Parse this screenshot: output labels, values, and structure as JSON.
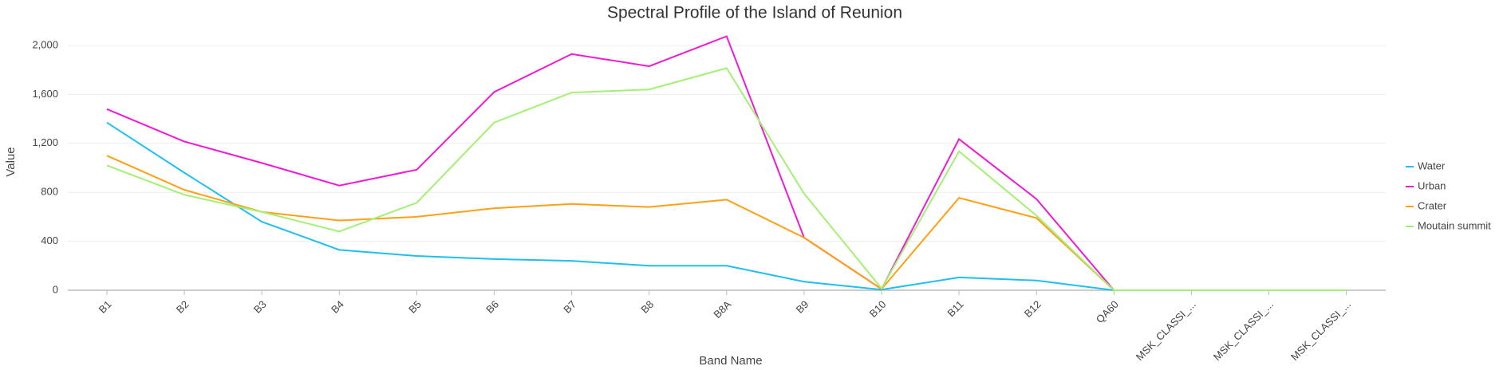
{
  "chart_data": {
    "type": "line",
    "title": "Spectral Profile of the Island of Reunion",
    "x_label": "Band Name",
    "y_label": "Value",
    "categories": [
      "B1",
      "B2",
      "B3",
      "B4",
      "B5",
      "B6",
      "B7",
      "B8",
      "B8A",
      "B9",
      "B10",
      "B11",
      "B12",
      "QA60",
      "MSK_CLASSI_...",
      "MSK_CLASSI_...",
      "MSK_CLASSI_..."
    ],
    "series": [
      {
        "name": "Water",
        "color": "#1fbff0",
        "values": [
          1370,
          960,
          560,
          330,
          280,
          255,
          240,
          200,
          200,
          70,
          5,
          105,
          80,
          0,
          0,
          0,
          0
        ]
      },
      {
        "name": "Urban",
        "color": "#f01ad2",
        "values": [
          1480,
          1215,
          1040,
          855,
          985,
          1620,
          1930,
          1830,
          2075,
          430,
          10,
          1235,
          745,
          0,
          0,
          0,
          0
        ]
      },
      {
        "name": "Crater",
        "color": "#ffa014",
        "values": [
          1100,
          820,
          640,
          570,
          600,
          670,
          705,
          680,
          740,
          430,
          10,
          755,
          590,
          0,
          0,
          0,
          0
        ]
      },
      {
        "name": "Moutain summit",
        "color": "#a3f074",
        "values": [
          1020,
          780,
          640,
          480,
          715,
          1370,
          1615,
          1640,
          1815,
          790,
          15,
          1135,
          610,
          0,
          0,
          0,
          0
        ]
      }
    ],
    "ylim": [
      0,
      2000
    ],
    "yticks": [
      0,
      400,
      800,
      {
        "value": 1200,
        "label": "1,200"
      },
      {
        "value": 1600,
        "label": "1,600"
      },
      {
        "value": 2000,
        "label": "2,000"
      }
    ],
    "grid": true,
    "legend": "right"
  }
}
